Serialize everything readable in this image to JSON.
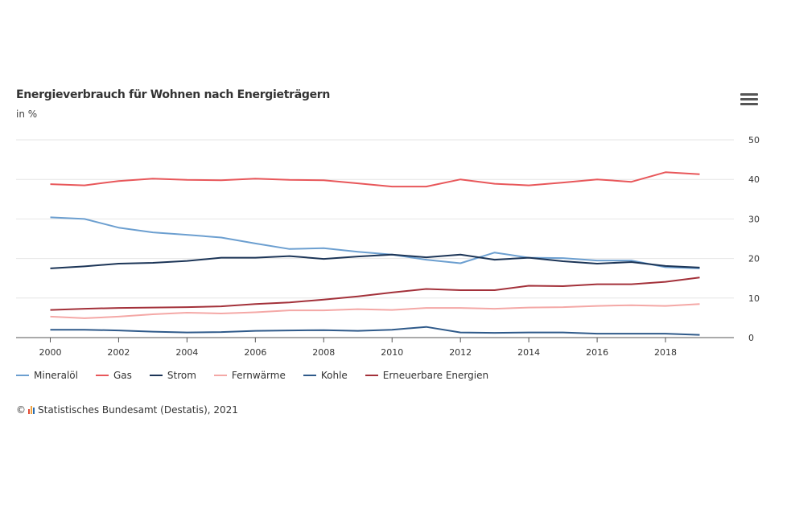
{
  "header": {
    "title": "Energieverbrauch für Wohnen nach Energieträgern",
    "subtitle": "in %"
  },
  "credit": {
    "prefix": "©",
    "text": "Statistisches Bundesamt (Destatis), 2021"
  },
  "menu_icon": "hamburger-menu-icon",
  "colors": {
    "logo_bars": [
      "#e34a33",
      "#f1a340",
      "#2b6cb0"
    ]
  },
  "chart_data": {
    "type": "line",
    "title": "Energieverbrauch für Wohnen nach Energieträgern",
    "subtitle": "in %",
    "x": [
      2000,
      2001,
      2002,
      2003,
      2004,
      2005,
      2006,
      2007,
      2008,
      2009,
      2010,
      2011,
      2012,
      2013,
      2014,
      2015,
      2016,
      2017,
      2018,
      2019
    ],
    "xlim": [
      1999,
      2020
    ],
    "xticks": [
      2000,
      2002,
      2004,
      2006,
      2008,
      2010,
      2012,
      2014,
      2016,
      2018
    ],
    "ylim": [
      0,
      50
    ],
    "yticks": [
      0,
      10,
      20,
      30,
      40,
      50
    ],
    "y_axis_position": "right",
    "grid": true,
    "legend_position": "bottom-left",
    "series": [
      {
        "name": "Mineralöl",
        "color": "#6c9fd0",
        "values": [
          30.4,
          30.0,
          27.8,
          26.6,
          26.0,
          25.3,
          23.8,
          22.4,
          22.6,
          21.7,
          21.0,
          19.7,
          18.8,
          21.5,
          20.2,
          20.1,
          19.5,
          19.5,
          17.8,
          17.5
        ]
      },
      {
        "name": "Gas",
        "color": "#e8575a",
        "values": [
          38.8,
          38.5,
          39.6,
          40.2,
          39.9,
          39.8,
          40.2,
          39.9,
          39.8,
          39.0,
          38.2,
          38.2,
          40.0,
          38.9,
          38.5,
          39.2,
          40.0,
          39.4,
          41.8,
          41.3
        ]
      },
      {
        "name": "Strom",
        "color": "#1c3557",
        "values": [
          17.5,
          18.0,
          18.7,
          18.9,
          19.4,
          20.2,
          20.2,
          20.6,
          19.9,
          20.5,
          21.0,
          20.3,
          21.0,
          19.7,
          20.2,
          19.3,
          18.7,
          19.1,
          18.1,
          17.7
        ]
      },
      {
        "name": "Fernwärme",
        "color": "#f4a8a6",
        "values": [
          5.3,
          4.9,
          5.3,
          5.9,
          6.3,
          6.1,
          6.4,
          6.9,
          6.9,
          7.2,
          7.0,
          7.5,
          7.5,
          7.3,
          7.6,
          7.7,
          8.0,
          8.2,
          8.0,
          8.5
        ]
      },
      {
        "name": "Kohle",
        "color": "#2f5a8a",
        "values": [
          2.0,
          2.0,
          1.8,
          1.5,
          1.3,
          1.4,
          1.7,
          1.8,
          1.9,
          1.7,
          2.0,
          2.7,
          1.3,
          1.2,
          1.3,
          1.3,
          1.0,
          1.0,
          1.0,
          0.7
        ]
      },
      {
        "name": "Erneuerbare Energien",
        "color": "#a3313a",
        "values": [
          7.0,
          7.3,
          7.5,
          7.6,
          7.7,
          7.9,
          8.5,
          8.9,
          9.6,
          10.4,
          11.4,
          12.3,
          12.0,
          12.0,
          13.1,
          13.0,
          13.5,
          13.5,
          14.1,
          15.2
        ]
      }
    ]
  }
}
